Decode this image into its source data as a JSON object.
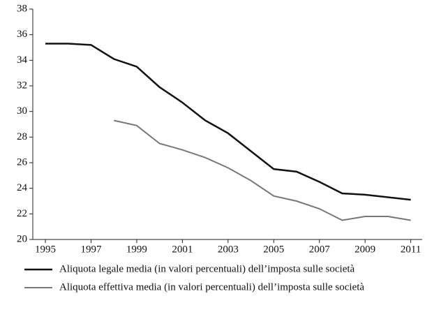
{
  "chart_data": {
    "type": "line",
    "x": [
      1995,
      1996,
      1997,
      1998,
      1999,
      2000,
      2001,
      2002,
      2003,
      2004,
      2005,
      2006,
      2007,
      2008,
      2009,
      2010,
      2011
    ],
    "series": [
      {
        "name": "Aliquota legale media (in valori percentuali) dell’imposta sulle società",
        "color": "#111111",
        "values": [
          35.3,
          35.3,
          35.2,
          34.1,
          33.5,
          31.9,
          30.7,
          29.3,
          28.3,
          26.9,
          25.5,
          25.3,
          24.5,
          23.6,
          23.5,
          23.3,
          23.1
        ]
      },
      {
        "name": "Aliquota effettiva media (in valori percentuali) dell’imposta sulle società",
        "color": "#777777",
        "values": [
          null,
          null,
          null,
          29.3,
          28.9,
          27.5,
          27.0,
          26.4,
          25.6,
          24.6,
          23.4,
          23.0,
          22.4,
          21.5,
          21.8,
          21.8,
          21.5
        ]
      }
    ],
    "xlim": [
      1994.45,
      2011.5
    ],
    "xticks": [
      1995,
      1997,
      1999,
      2001,
      2003,
      2005,
      2007,
      2009,
      2011
    ],
    "ylim": [
      20,
      38
    ],
    "yticks": [
      20,
      22,
      24,
      26,
      28,
      30,
      32,
      34,
      36,
      38
    ],
    "grid": false
  }
}
